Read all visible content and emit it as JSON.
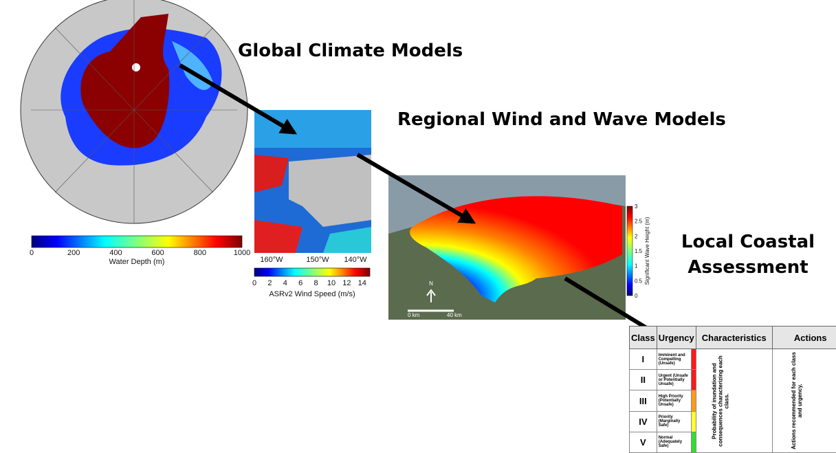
{
  "headings": {
    "global": "Global Climate Models",
    "regional": "Regional Wind and Wave Models",
    "local": [
      "Local Coastal",
      "Assessment"
    ]
  },
  "depth_map": {
    "colorbar": {
      "ticks": [
        0,
        200,
        400,
        600,
        800,
        1000
      ],
      "range": [
        0,
        1000
      ],
      "label": "Water Depth (m)"
    }
  },
  "wind_map": {
    "longitudes": [
      "160°W",
      "150°W",
      "140°W"
    ],
    "colorbar": {
      "ticks": [
        0,
        2,
        4,
        6,
        8,
        10,
        12,
        14
      ],
      "range": [
        0,
        15
      ],
      "label": "ASRv2 Wind Speed (m/s)"
    }
  },
  "wave_map": {
    "colorbar": {
      "ticks": [
        0,
        0.5,
        1,
        1.5,
        2,
        2.5,
        3
      ],
      "range": [
        0,
        3
      ],
      "label": "Significant Wave Height (m)"
    },
    "north": "N",
    "scale": [
      "0 km",
      "40 km"
    ]
  },
  "table": {
    "headers": [
      "Class",
      "Urgency",
      "Characteristics",
      "Actions"
    ],
    "rows": [
      {
        "class": "I",
        "urgency": "Imminent and Compelling (Unsafe)",
        "color": "#ff1a1a"
      },
      {
        "class": "II",
        "urgency": "Urgent (Unsafe or Potentially Unsafe)",
        "color": "#ff1a1a"
      },
      {
        "class": "III",
        "urgency": "High Priority (Potentially Unsafe)",
        "color": "#ff9a1a"
      },
      {
        "class": "IV",
        "urgency": "Priority (Marginally Safe)",
        "color": "#ffff33"
      },
      {
        "class": "V",
        "urgency": "Normal (Adequately Safe)",
        "color": "#33dd33"
      }
    ],
    "characteristics": "Probability of inundation and consequences characterizing each class.",
    "actions": "Actions recommended for each class and urgency."
  }
}
